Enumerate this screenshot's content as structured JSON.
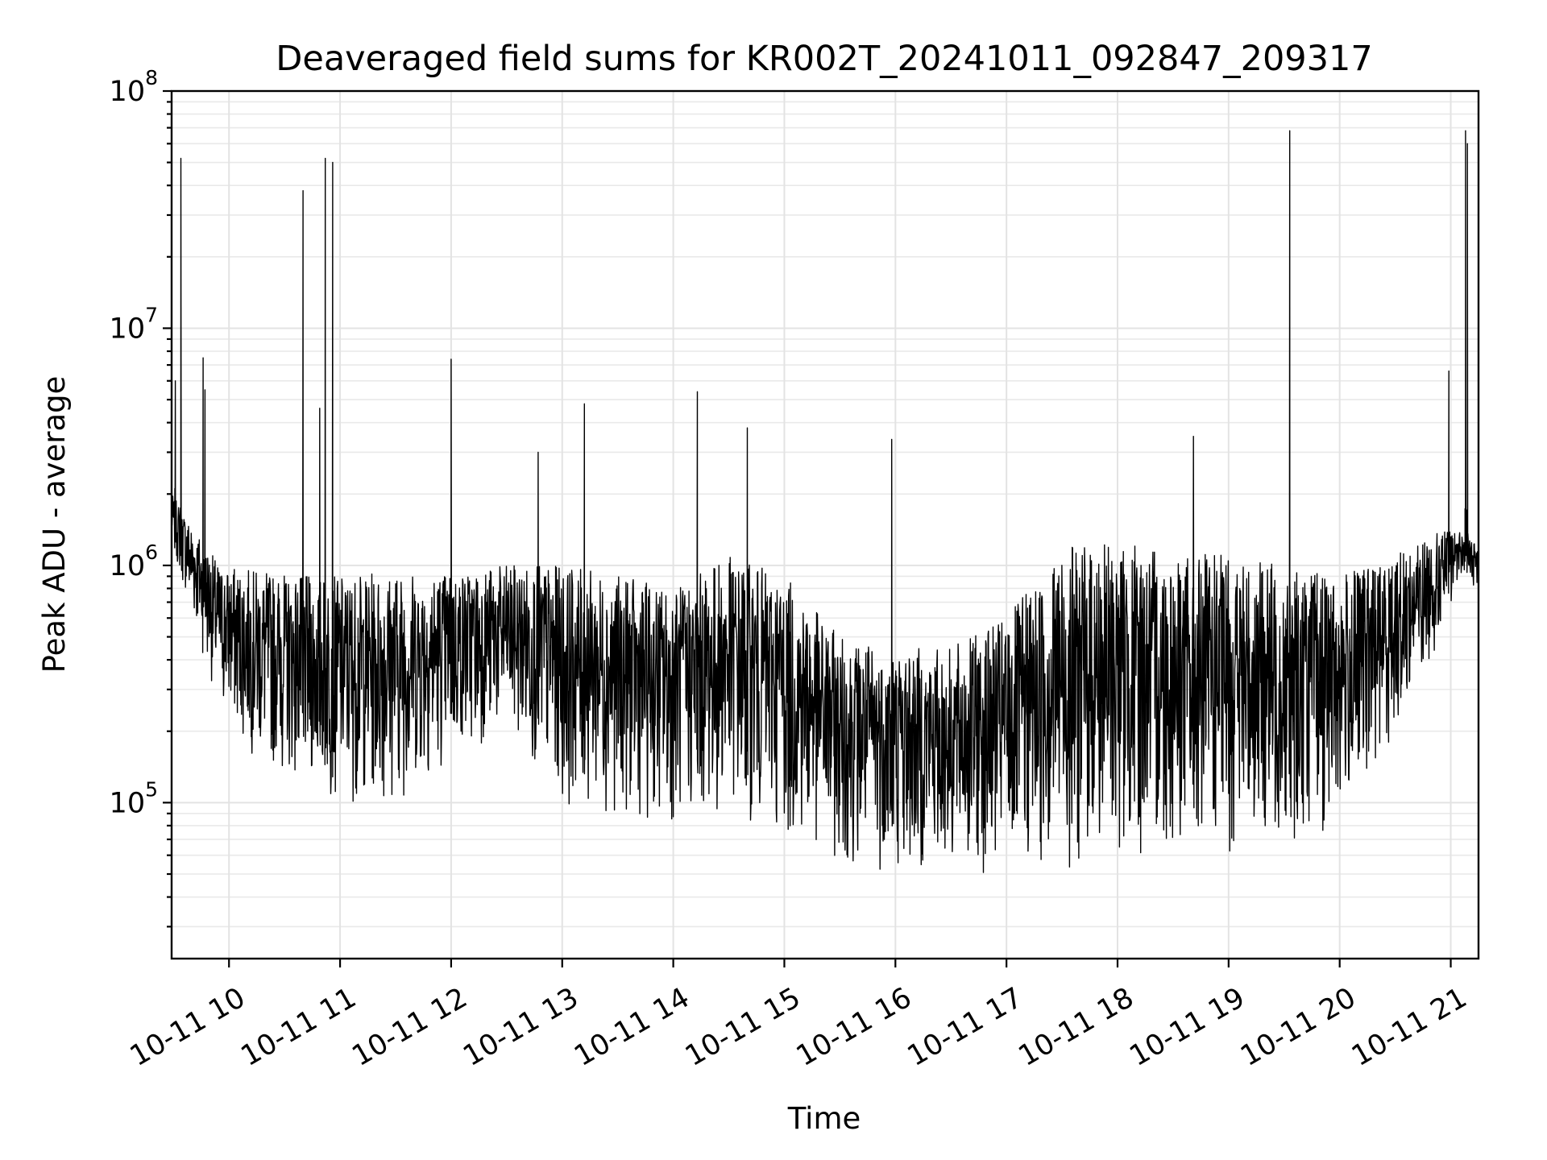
{
  "chart_data": {
    "type": "line",
    "title": "Deaveraged field sums for KR002T_20241011_092847_209317",
    "xlabel": "Time",
    "ylabel": "Peak ADU - average",
    "yscale": "log",
    "ylim": [
      22000,
      100000000
    ],
    "xlim": [
      "2024-10-11 09:29",
      "2024-10-11 21:15"
    ],
    "grid": true,
    "x_ticks": [
      "10-11 10",
      "10-11 11",
      "10-11 12",
      "10-11 13",
      "10-11 14",
      "10-11 15",
      "10-11 16",
      "10-11 17",
      "10-11 18",
      "10-11 19",
      "10-11 20",
      "10-11 21"
    ],
    "y_ticks": [
      {
        "base": "10",
        "exp": "5"
      },
      {
        "base": "10",
        "exp": "6"
      },
      {
        "base": "10",
        "exp": "7"
      },
      {
        "base": "10",
        "exp": "8"
      }
    ],
    "series": [
      {
        "color": "#000000",
        "envelope": {
          "x": [
            "2024-10-11 09:29",
            "2024-10-11 09:40",
            "2024-10-11 09:55",
            "2024-10-11 10:15",
            "2024-10-11 10:40",
            "2024-10-11 11:00",
            "2024-10-11 11:30",
            "2024-10-11 12:00",
            "2024-10-11 12:30",
            "2024-10-11 13:00",
            "2024-10-11 13:30",
            "2024-10-11 14:00",
            "2024-10-11 14:30",
            "2024-10-11 15:00",
            "2024-10-11 15:30",
            "2024-10-11 16:00",
            "2024-10-11 16:30",
            "2024-10-11 17:00",
            "2024-10-11 17:30",
            "2024-10-11 18:00",
            "2024-10-11 18:30",
            "2024-10-11 19:00",
            "2024-10-11 19:30",
            "2024-10-11 20:00",
            "2024-10-11 20:30",
            "2024-10-11 20:55",
            "2024-10-11 21:05",
            "2024-10-11 21:15"
          ],
          "low": [
            1200000,
            600000,
            250000,
            150000,
            120000,
            100000,
            100000,
            150000,
            200000,
            100000,
            90000,
            80000,
            90000,
            70000,
            55000,
            50000,
            50000,
            50000,
            50000,
            55000,
            60000,
            60000,
            65000,
            80000,
            200000,
            500000,
            900000,
            800000
          ],
          "high": [
            2000000,
            1500000,
            1000000,
            950000,
            900000,
            900000,
            950000,
            950000,
            1000000,
            1000000,
            900000,
            800000,
            1100000,
            900000,
            500000,
            450000,
            450000,
            600000,
            1200000,
            1250000,
            1150000,
            1100000,
            1000000,
            900000,
            1100000,
            1400000,
            1400000,
            1200000
          ]
        },
        "spikes": [
          {
            "x": "2024-10-11 09:31",
            "y": 6000000
          },
          {
            "x": "2024-10-11 09:34",
            "y": 52000000
          },
          {
            "x": "2024-10-11 09:46",
            "y": 7500000
          },
          {
            "x": "2024-10-11 09:47",
            "y": 5500000
          },
          {
            "x": "2024-10-11 10:40",
            "y": 38000000
          },
          {
            "x": "2024-10-11 10:49",
            "y": 4600000
          },
          {
            "x": "2024-10-11 10:52",
            "y": 52000000
          },
          {
            "x": "2024-10-11 10:56",
            "y": 50000000
          },
          {
            "x": "2024-10-11 12:00",
            "y": 7400000
          },
          {
            "x": "2024-10-11 12:47",
            "y": 3000000
          },
          {
            "x": "2024-10-11 13:12",
            "y": 4800000
          },
          {
            "x": "2024-10-11 14:13",
            "y": 5400000
          },
          {
            "x": "2024-10-11 14:40",
            "y": 3800000
          },
          {
            "x": "2024-10-11 15:58",
            "y": 3400000
          },
          {
            "x": "2024-10-11 18:41",
            "y": 3500000
          },
          {
            "x": "2024-10-11 19:33",
            "y": 68000000
          },
          {
            "x": "2024-10-11 20:59",
            "y": 6600000
          },
          {
            "x": "2024-10-11 21:08",
            "y": 68000000
          },
          {
            "x": "2024-10-11 21:09",
            "y": 60000000
          }
        ]
      }
    ]
  }
}
